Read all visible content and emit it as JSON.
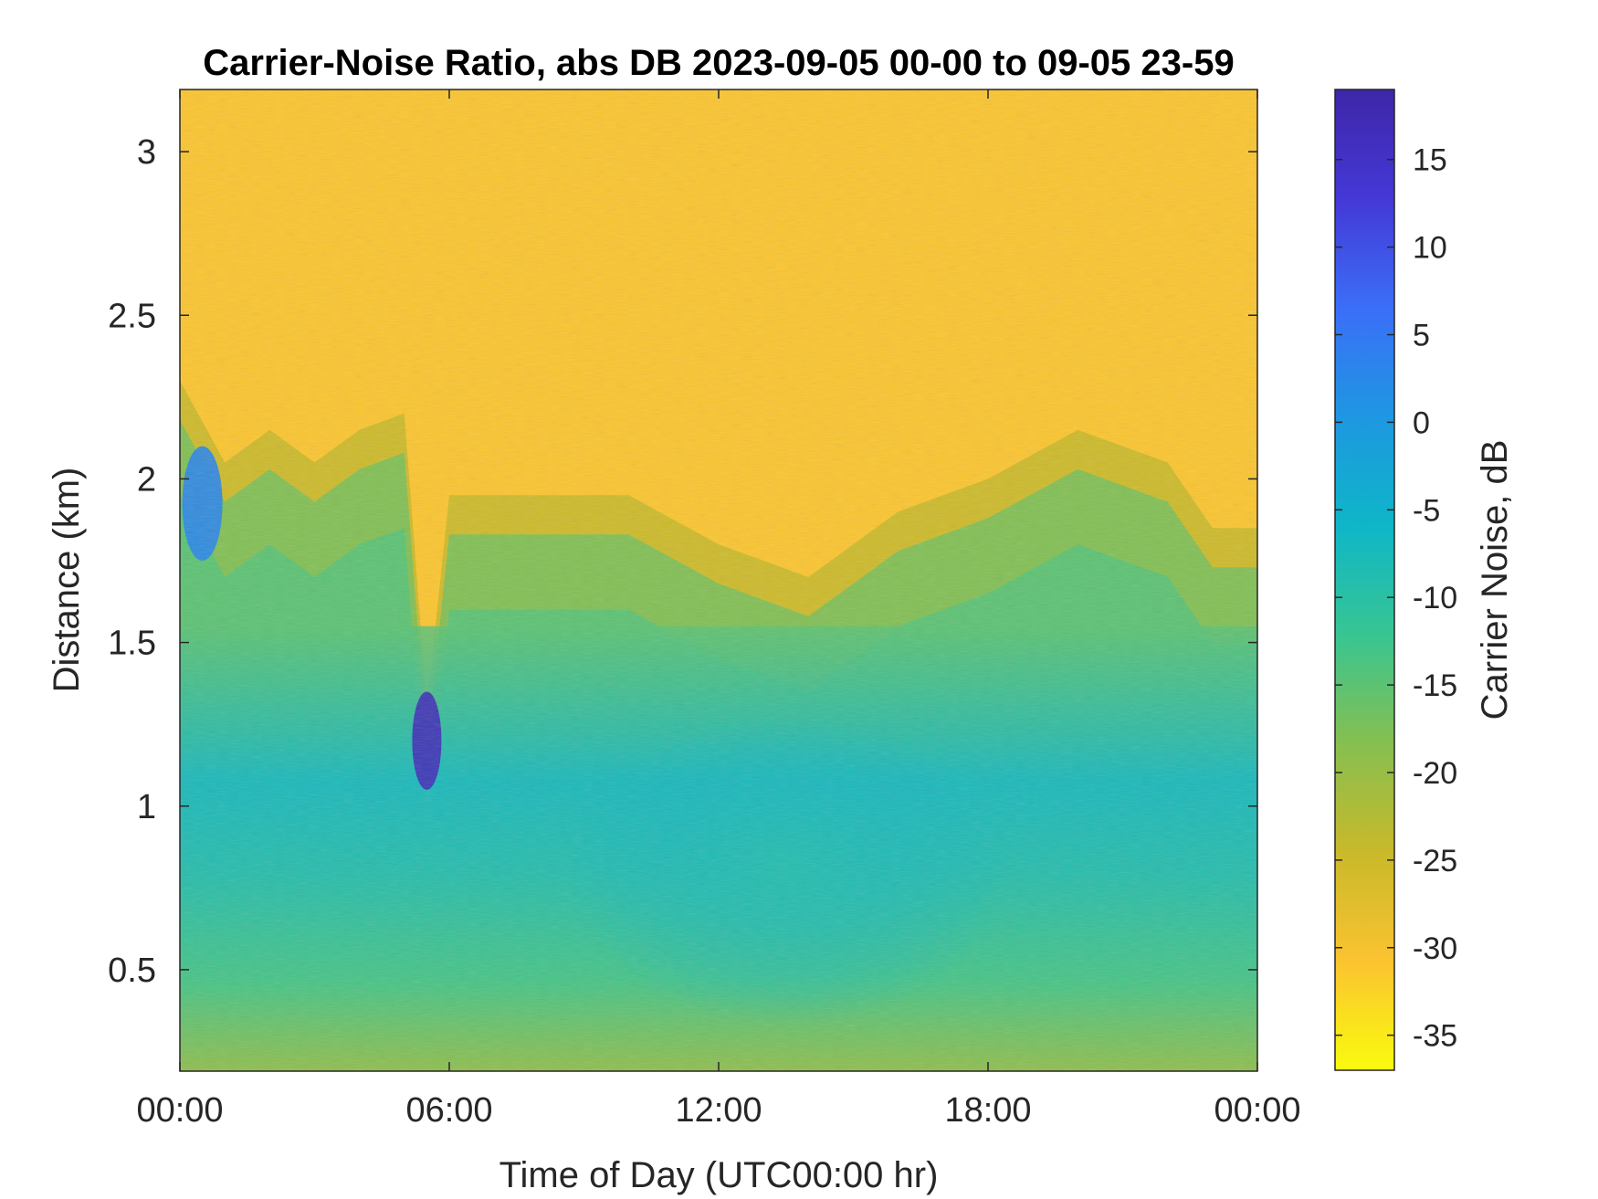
{
  "chart_data": {
    "type": "heatmap",
    "title": "Carrier-Noise Ratio, abs DB 2023-09-05 00-00 to 09-05 23-59",
    "xlabel": "Time of Day (UTC00:00 hr)",
    "ylabel": "Distance (km)",
    "x_unit": "hour",
    "xlim": [
      0,
      24
    ],
    "ylim": [
      0.19,
      3.19
    ],
    "x_ticks": [
      {
        "value": 0,
        "label": "00:00"
      },
      {
        "value": 6,
        "label": "06:00"
      },
      {
        "value": 12,
        "label": "12:00"
      },
      {
        "value": 18,
        "label": "18:00"
      },
      {
        "value": 24,
        "label": "00:00"
      }
    ],
    "y_ticks": [
      {
        "value": 0.5,
        "label": "0.5"
      },
      {
        "value": 1,
        "label": "1"
      },
      {
        "value": 1.5,
        "label": "1.5"
      },
      {
        "value": 2,
        "label": "2"
      },
      {
        "value": 2.5,
        "label": "2.5"
      },
      {
        "value": 3,
        "label": "3"
      }
    ],
    "colorbar": {
      "label": "Carrier Noise, dB",
      "clim": [
        -37,
        19
      ],
      "ticks": [
        {
          "value": 15,
          "label": "15"
        },
        {
          "value": 10,
          "label": "10"
        },
        {
          "value": 5,
          "label": "5"
        },
        {
          "value": 0,
          "label": "0"
        },
        {
          "value": -5,
          "label": "-5"
        },
        {
          "value": -10,
          "label": "-10"
        },
        {
          "value": -15,
          "label": "-15"
        },
        {
          "value": -20,
          "label": "-20"
        },
        {
          "value": -25,
          "label": "-25"
        },
        {
          "value": -30,
          "label": "-30"
        },
        {
          "value": -35,
          "label": "-35"
        }
      ],
      "colormap": [
        "#f9fb0e",
        "#fbc330",
        "#c9b92a",
        "#86bf50",
        "#38c592",
        "#0eb6c8",
        "#1e97e2",
        "#3b6ef8",
        "#4438d6",
        "#3e26a8"
      ]
    },
    "x_hours": [
      0,
      1,
      2,
      3,
      4,
      5,
      5.5,
      6,
      7,
      8,
      10,
      12,
      14,
      16,
      18,
      20,
      22,
      23,
      24
    ],
    "boundary_km": [
      2.3,
      2.05,
      2.15,
      2.05,
      2.15,
      2.2,
      1.3,
      1.95,
      1.95,
      1.95,
      1.95,
      1.8,
      1.7,
      1.9,
      2.0,
      2.15,
      2.05,
      1.85,
      1.85
    ],
    "values_db": {
      "above_boundary": -31,
      "transition": -25,
      "middle_band": -15,
      "core_min": -8,
      "near_ground": -20
    },
    "features": [
      {
        "hour": 0.5,
        "distance_km": [
          1.75,
          2.1
        ],
        "value_db": 3
      },
      {
        "hour": 5.5,
        "distance_km": [
          1.05,
          1.35
        ],
        "value_db": 17
      },
      {
        "hour": 13.5,
        "distance_km": [
          0.75,
          0.85
        ],
        "value_db": -8
      }
    ]
  }
}
